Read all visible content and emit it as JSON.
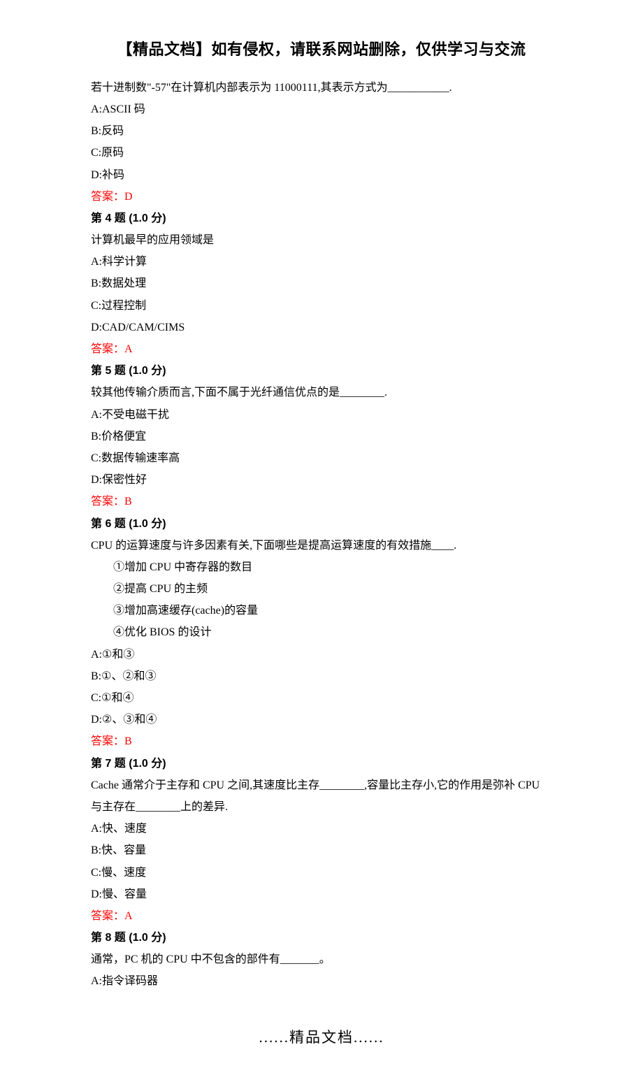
{
  "header": {
    "title": "【精品文档】如有侵权，请联系网站删除，仅供学习与交流"
  },
  "questions": [
    {
      "stem": "若十进制数\"-57\"在计算机内部表示为 11000111,其表示方式为___________.",
      "options": [
        "A:ASCII 码",
        "B:反码",
        "C:原码",
        "D:补码"
      ],
      "answer": "答案：D",
      "title": "第 4 题  (1.0 分)"
    },
    {
      "stem": "计算机最早的应用领域是",
      "options": [
        "A:科学计算",
        "B:数据处理",
        "C:过程控制",
        "D:CAD/CAM/CIMS"
      ],
      "answer": "答案：A",
      "title": "第 5 题  (1.0 分)"
    },
    {
      "stem": "较其他传输介质而言,下面不属于光纤通信优点的是________.",
      "options": [
        "A:不受电磁干扰",
        "B:价格便宜",
        "C:数据传输速率高",
        "D:保密性好"
      ],
      "answer": "答案：B",
      "title": "第 6 题  (1.0 分)"
    },
    {
      "stem": "CPU 的运算速度与许多因素有关,下面哪些是提高运算速度的有效措施____.",
      "sub_items": [
        "①增加 CPU 中寄存器的数目",
        "②提高 CPU 的主频",
        "③增加高速缓存(cache)的容量",
        "④优化 BIOS 的设计"
      ],
      "options": [
        "A:①和③",
        "B:①、②和③",
        "C:①和④",
        "D:②、③和④"
      ],
      "answer": "答案：B",
      "title": "第 7 题  (1.0 分)"
    },
    {
      "stem": "Cache 通常介于主存和 CPU 之间,其速度比主存________,容量比主存小,它的作用是弥补 CPU 与主存在________上的差异.",
      "options": [
        "A:快、速度",
        "B:快、容量",
        "C:慢、速度",
        "D:慢、容量"
      ],
      "answer": "答案：A",
      "title": "第 8 题  (1.0 分)"
    },
    {
      "stem": "通常，PC 机的 CPU 中不包含的部件有_______。",
      "options": [
        "A:指令译码器"
      ]
    }
  ],
  "footer": {
    "text": "......精品文档......"
  }
}
